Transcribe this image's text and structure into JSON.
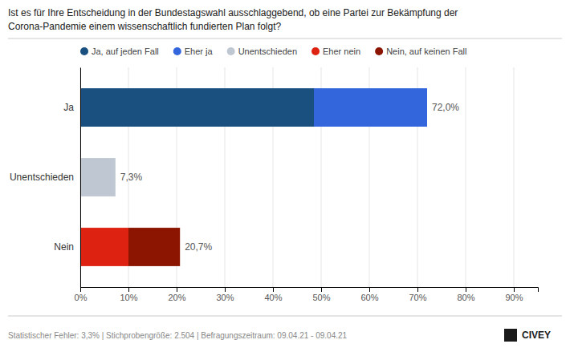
{
  "chart_data": {
    "type": "bar",
    "orientation": "horizontal",
    "stacked": true,
    "title": "Ist es für Ihre Entscheidung in der Bundestagswahl ausschlaggebend, ob eine Partei zur Bekämpfung der",
    "subtitle": "Corona-Pandemie einem wissenschaftlich fundierten Plan folgt?",
    "categories": [
      "Ja",
      "Unentschieden",
      "Nein"
    ],
    "series": [
      {
        "name": "Ja, auf jeden Fall",
        "color": "#1a5080",
        "values": [
          48.5,
          0.0,
          0.0
        ]
      },
      {
        "name": "Eher ja",
        "color": "#3366dd",
        "values": [
          23.5,
          0.0,
          0.0
        ]
      },
      {
        "name": "Unentschieden",
        "color": "#bfc8d2",
        "values": [
          0.0,
          7.3,
          0.0
        ]
      },
      {
        "name": "Eher nein",
        "color": "#dd2211",
        "values": [
          0.0,
          0.0,
          10.0
        ]
      },
      {
        "name": "Nein, auf keinen Fall",
        "color": "#8b1500",
        "values": [
          0.0,
          0.0,
          10.7
        ]
      }
    ],
    "totals": [
      72.0,
      7.3,
      20.7
    ],
    "total_labels": [
      "72,0%",
      "7,3%",
      "20,7%"
    ],
    "xlim": [
      0,
      95
    ],
    "xticks": [
      {
        "value": 0,
        "label": "0%"
      },
      {
        "value": 10,
        "label": "10%"
      },
      {
        "value": 20,
        "label": "20%"
      },
      {
        "value": 30,
        "label": "30%"
      },
      {
        "value": 40,
        "label": "40%"
      },
      {
        "value": 50,
        "label": "50%"
      },
      {
        "value": 60,
        "label": "60%"
      },
      {
        "value": 70,
        "label": "70%"
      },
      {
        "value": 80,
        "label": "80%"
      },
      {
        "value": 90,
        "label": "90%"
      }
    ],
    "grid": true,
    "legend": "top",
    "annotations": [
      "Statistischer Fehler: 3,3% | Stichprobengröße: 2.504 | Befragungszeitraum: 09.04.21 - 09.04.21",
      "CIVEY"
    ]
  }
}
